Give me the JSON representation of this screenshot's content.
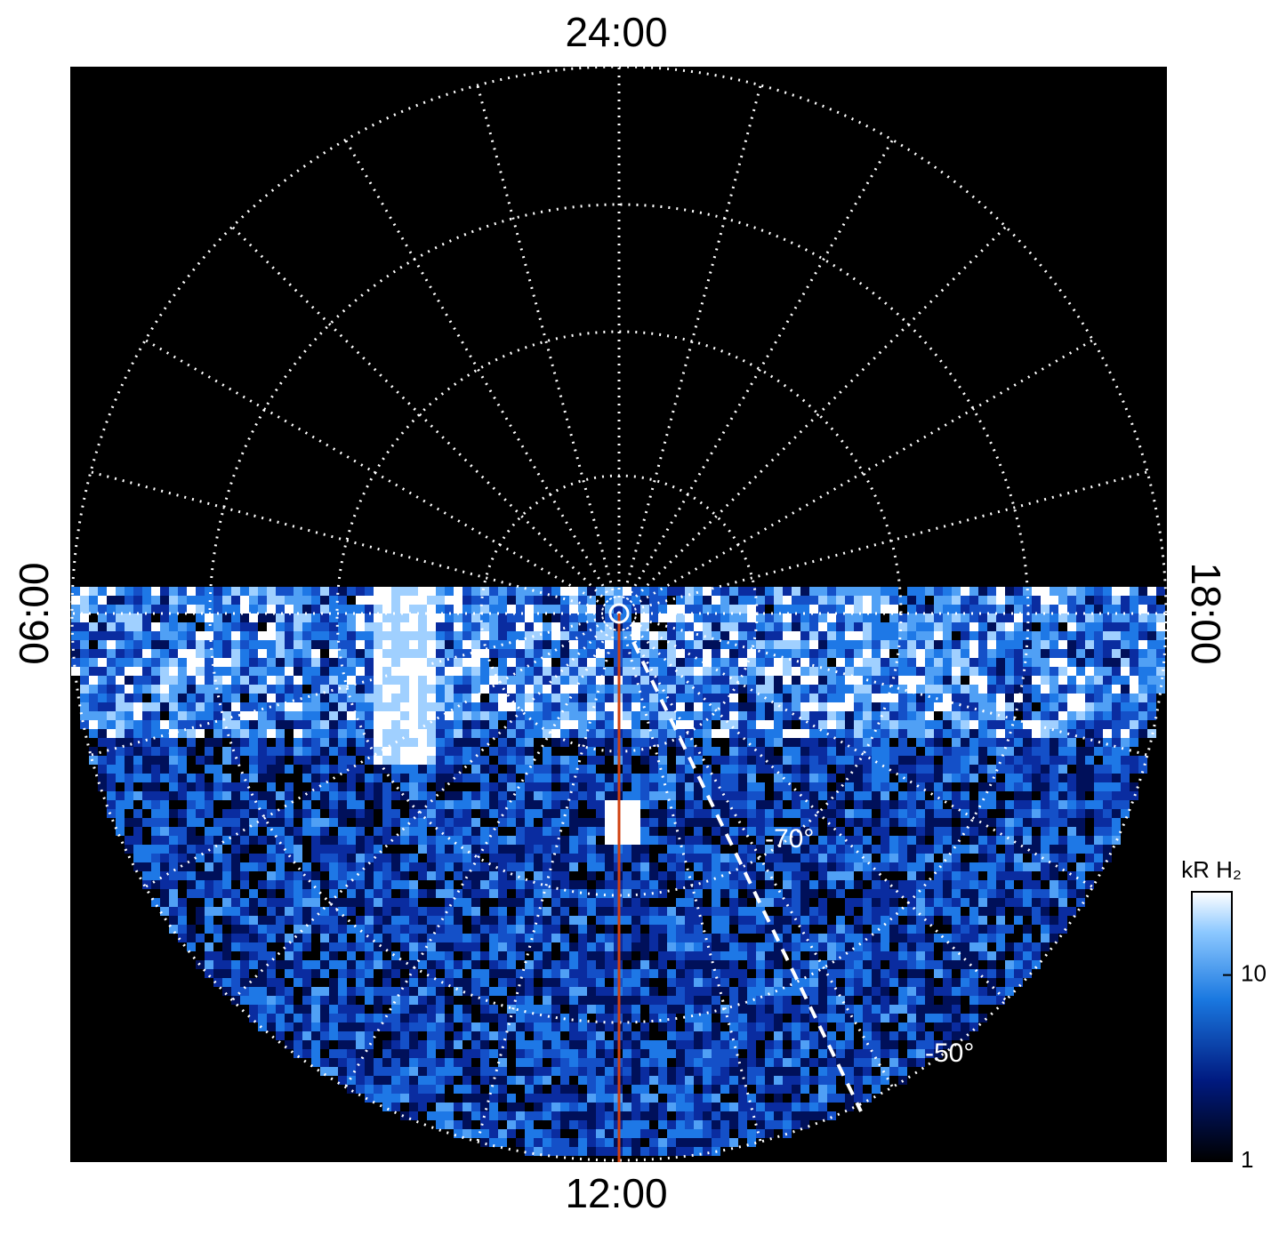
{
  "labels": {
    "top": "24:00",
    "bottom": "12:00",
    "left": "06:00",
    "right": "18:00",
    "lat_inner": "-70°",
    "lat_outer": "-50°"
  },
  "colorbar": {
    "title": "kR H₂",
    "scale": "log",
    "range": [
      1,
      28
    ],
    "ticks": [
      1,
      10
    ]
  }
}
